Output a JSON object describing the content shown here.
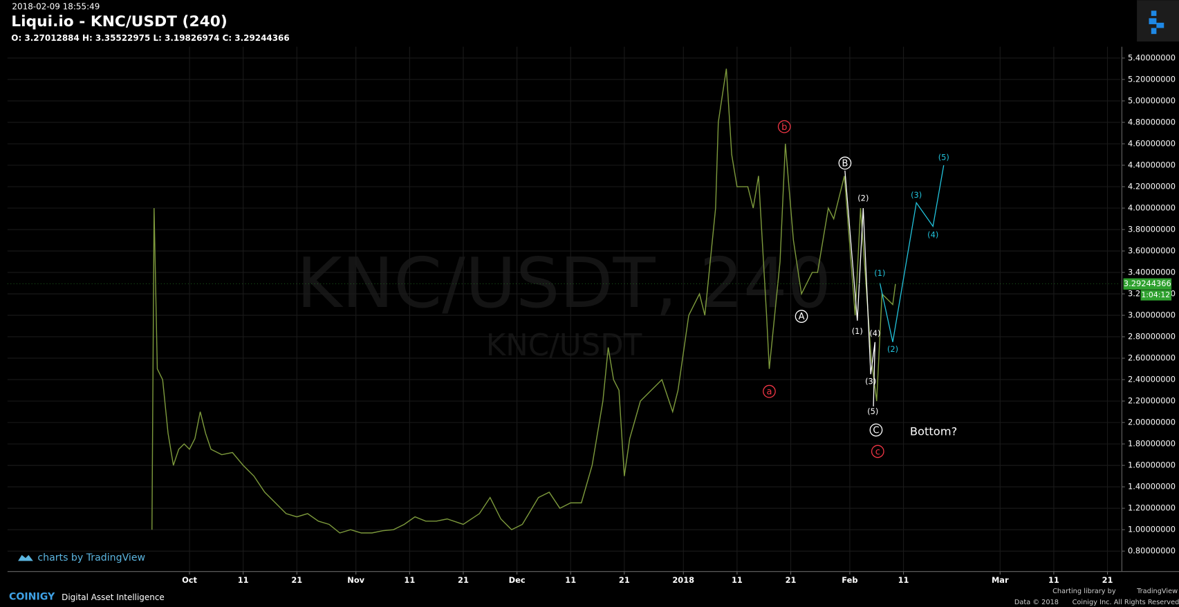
{
  "header": {
    "timestamp": "2018-02-09 18:55:49",
    "title": "Liqui.io - KNC/USDT (240)",
    "ohlc": "O: 3.27012884 H: 3.35522975 L: 3.19826974 C: 3.29244366"
  },
  "watermark": {
    "main": "KNC/USDT, 240",
    "sub": "KNC/USDT"
  },
  "footer": {
    "tv_badge": "charts by TradingView",
    "brand": "COINIGY",
    "tagline": "Digital Asset Intelligence",
    "library": "Charting library by",
    "library_name": "TradingView",
    "data_copy": "Data © 2018",
    "rights": "Coinigy Inc. All Rights Reserved.",
    "countdown": "1:04:12"
  },
  "chart_data": {
    "type": "line",
    "xlim": [
      -33.9,
      173.4
    ],
    "ylim": [
      0.61,
      5.505
    ],
    "xticks": [
      {
        "value": 0,
        "label": "Oct"
      },
      {
        "value": 10,
        "label": "11"
      },
      {
        "value": 20,
        "label": "21"
      },
      {
        "value": 31,
        "label": "Nov"
      },
      {
        "value": 41,
        "label": "11"
      },
      {
        "value": 51,
        "label": "21"
      },
      {
        "value": 61,
        "label": "Dec"
      },
      {
        "value": 71,
        "label": "11"
      },
      {
        "value": 81,
        "label": "21"
      },
      {
        "value": 92,
        "label": "2018"
      },
      {
        "value": 102,
        "label": "11"
      },
      {
        "value": 112,
        "label": "21"
      },
      {
        "value": 123,
        "label": "Feb"
      },
      {
        "value": 133,
        "label": "11"
      },
      {
        "value": 151,
        "label": "Mar"
      },
      {
        "value": 161,
        "label": "11"
      },
      {
        "value": 171,
        "label": "21"
      }
    ],
    "yticks": [
      {
        "value": 0.8,
        "label": "0.80000000"
      },
      {
        "value": 1.0,
        "label": "1.00000000"
      },
      {
        "value": 1.2,
        "label": "1.20000000"
      },
      {
        "value": 1.4,
        "label": "1.40000000"
      },
      {
        "value": 1.6,
        "label": "1.60000000"
      },
      {
        "value": 1.8,
        "label": "1.80000000"
      },
      {
        "value": 2.0,
        "label": "2.00000000"
      },
      {
        "value": 2.2,
        "label": "2.20000000"
      },
      {
        "value": 2.4,
        "label": "2.40000000"
      },
      {
        "value": 2.6,
        "label": "2.60000000"
      },
      {
        "value": 2.8,
        "label": "2.80000000"
      },
      {
        "value": 3.0,
        "label": "3.00000000"
      },
      {
        "value": 3.2,
        "label": "3.20000000"
      },
      {
        "value": 3.4,
        "label": "3.40000000"
      },
      {
        "value": 3.6,
        "label": "3.60000000"
      },
      {
        "value": 3.8,
        "label": "3.80000000"
      },
      {
        "value": 4.0,
        "label": "4.00000000"
      },
      {
        "value": 4.2,
        "label": "4.20000000"
      },
      {
        "value": 4.4,
        "label": "4.40000000"
      },
      {
        "value": 4.6,
        "label": "4.60000000"
      },
      {
        "value": 4.8,
        "label": "4.80000000"
      },
      {
        "value": 5.0,
        "label": "5.00000000"
      },
      {
        "value": 5.2,
        "label": "5.20000000"
      },
      {
        "value": 5.4,
        "label": "5.40000000"
      }
    ],
    "grid": true,
    "series": [
      {
        "color": "#7d9a3c",
        "x": [
          -7,
          -6.6,
          -6,
          -5,
          -4,
          -3,
          -2,
          -1,
          0,
          1,
          2,
          3,
          4,
          6,
          8,
          10,
          12,
          14,
          16,
          18,
          20,
          22,
          24,
          26,
          28,
          30,
          32,
          34,
          36,
          38,
          40,
          42,
          44,
          46,
          48,
          51,
          54,
          56,
          58,
          60,
          62,
          65,
          67,
          69,
          71,
          73,
          75,
          77,
          78,
          79,
          80,
          81,
          82,
          84,
          86,
          88,
          90,
          91,
          93,
          95,
          96,
          98,
          98.5,
          100,
          101,
          102,
          104,
          105,
          106,
          107.5,
          108,
          110,
          111,
          112.5,
          114,
          116,
          117,
          119,
          120,
          122,
          124,
          125,
          127,
          128,
          129,
          131,
          131.5
        ],
        "values": [
          1.0,
          4.0,
          2.5,
          2.4,
          1.9,
          1.6,
          1.75,
          1.8,
          1.75,
          1.85,
          2.1,
          1.9,
          1.75,
          1.7,
          1.72,
          1.6,
          1.5,
          1.35,
          1.25,
          1.15,
          1.12,
          1.15,
          1.08,
          1.05,
          0.97,
          1.0,
          0.97,
          0.97,
          0.99,
          1.0,
          1.05,
          1.12,
          1.08,
          1.08,
          1.1,
          1.05,
          1.15,
          1.3,
          1.1,
          1.0,
          1.05,
          1.3,
          1.35,
          1.2,
          1.25,
          1.25,
          1.6,
          2.2,
          2.7,
          2.4,
          2.3,
          1.5,
          1.85,
          2.2,
          2.3,
          2.4,
          2.1,
          2.3,
          3.0,
          3.2,
          3.0,
          4.0,
          4.8,
          5.3,
          4.5,
          4.2,
          4.2,
          4.0,
          4.3,
          3.0,
          2.5,
          3.5,
          4.6,
          3.7,
          3.2,
          3.4,
          3.4,
          4.0,
          3.9,
          4.3,
          3.0,
          4.0,
          2.6,
          2.2,
          3.2,
          3.1,
          3.29244366
        ]
      }
    ],
    "last_price": 3.29244366,
    "waves": [
      {
        "color": "#ffffff",
        "x": [
          122.1,
          124.4,
          125.5,
          126.9,
          127.7,
          127.4
        ],
        "values": [
          4.35,
          2.95,
          4.0,
          2.45,
          2.75,
          2.15
        ]
      },
      {
        "color": "#22c3dc",
        "x": [
          128.6,
          131,
          135.4,
          138.5,
          140.5
        ],
        "values": [
          3.3,
          2.75,
          4.05,
          3.83,
          4.4
        ]
      }
    ],
    "annotations": [
      {
        "text": "a",
        "x": 108,
        "y": 2.29,
        "color": "#f23645",
        "circle": true
      },
      {
        "text": "b",
        "x": 110.8,
        "y": 4.76,
        "color": "#f23645",
        "circle": true
      },
      {
        "text": "c",
        "x": 128.2,
        "y": 1.73,
        "color": "#f23645",
        "circle": true
      },
      {
        "text": "A",
        "x": 114,
        "y": 2.99,
        "color": "#ffffff",
        "circle": true
      },
      {
        "text": "B",
        "x": 122.1,
        "y": 4.42,
        "color": "#ffffff",
        "circle": true
      },
      {
        "text": "C",
        "x": 127.9,
        "y": 1.93,
        "color": "#ffffff",
        "circle": true
      },
      {
        "text": "(1)",
        "x": 124.4,
        "y": 2.85,
        "color": "#ffffff",
        "circle": false
      },
      {
        "text": "(2)",
        "x": 125.5,
        "y": 4.09,
        "color": "#ffffff",
        "circle": false
      },
      {
        "text": "(3)",
        "x": 126.9,
        "y": 2.38,
        "color": "#ffffff",
        "circle": false
      },
      {
        "text": "(4)",
        "x": 127.7,
        "y": 2.83,
        "color": "#ffffff",
        "circle": false
      },
      {
        "text": "(5)",
        "x": 127.3,
        "y": 2.1,
        "color": "#ffffff",
        "circle": false
      },
      {
        "text": "(1)",
        "x": 128.6,
        "y": 3.39,
        "color": "#22c3dc",
        "circle": false
      },
      {
        "text": "(2)",
        "x": 131,
        "y": 2.68,
        "color": "#22c3dc",
        "circle": false
      },
      {
        "text": "(3)",
        "x": 135.4,
        "y": 4.12,
        "color": "#22c3dc",
        "circle": false
      },
      {
        "text": "(4)",
        "x": 138.5,
        "y": 3.75,
        "color": "#22c3dc",
        "circle": false
      },
      {
        "text": "(5)",
        "x": 140.5,
        "y": 4.47,
        "color": "#22c3dc",
        "circle": false
      },
      {
        "text": "Bottom?",
        "x": 138.4,
        "y": 1.91,
        "color": "#ffffff",
        "circle": false
      }
    ]
  }
}
